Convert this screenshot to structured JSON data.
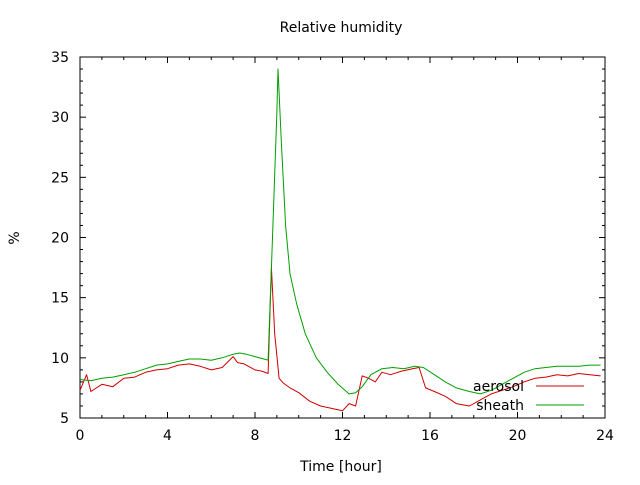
{
  "chart_data": {
    "type": "line",
    "title": "Relative humidity",
    "xlabel": "Time [hour]",
    "ylabel": "%",
    "xlim": [
      0,
      24
    ],
    "ylim": [
      5,
      35
    ],
    "x_ticks": [
      0,
      4,
      8,
      12,
      16,
      20,
      24
    ],
    "y_ticks": [
      5,
      10,
      15,
      20,
      25,
      30,
      35
    ],
    "grid": false,
    "legend_position": "bottom-right",
    "series": [
      {
        "name": "aerosol",
        "color": "#d00000",
        "x": [
          0,
          0.3,
          0.5,
          1,
          1.5,
          2,
          2.5,
          3,
          3.5,
          4,
          4.5,
          5,
          5.5,
          6,
          6.5,
          7,
          7.2,
          7.5,
          8,
          8.3,
          8.6,
          8.75,
          8.9,
          9.1,
          9.3,
          9.6,
          10,
          10.5,
          11,
          11.5,
          12,
          12.3,
          12.6,
          12.9,
          13.2,
          13.5,
          13.8,
          14.2,
          14.7,
          15.2,
          15.5,
          15.8,
          16.2,
          16.7,
          17.2,
          17.8,
          18.3,
          18.8,
          19.3,
          19.8,
          20.3,
          20.8,
          21.3,
          21.8,
          22.3,
          22.8,
          23.3,
          23.8
        ],
        "y": [
          7.3,
          8.6,
          7.2,
          7.8,
          7.6,
          8.3,
          8.4,
          8.8,
          9.0,
          9.1,
          9.4,
          9.5,
          9.3,
          9.0,
          9.2,
          10.1,
          9.6,
          9.5,
          9.0,
          8.9,
          8.7,
          17.5,
          12.0,
          8.3,
          7.9,
          7.5,
          7.1,
          6.4,
          6.0,
          5.8,
          5.6,
          6.2,
          6.0,
          8.5,
          8.3,
          8.0,
          8.8,
          8.6,
          8.9,
          9.1,
          9.2,
          7.5,
          7.2,
          6.8,
          6.2,
          6.0,
          6.5,
          7.0,
          7.3,
          7.6,
          8.0,
          8.3,
          8.4,
          8.6,
          8.5,
          8.7,
          8.6,
          8.5
        ]
      },
      {
        "name": "sheath",
        "color": "#00a000",
        "x": [
          0,
          0.5,
          1,
          1.5,
          2,
          2.5,
          3,
          3.5,
          4,
          4.5,
          5,
          5.5,
          6,
          6.5,
          7,
          7.3,
          7.6,
          8,
          8.4,
          8.6,
          8.8,
          9.0,
          9.05,
          9.2,
          9.4,
          9.6,
          9.9,
          10.3,
          10.8,
          11.3,
          11.8,
          12.3,
          12.6,
          12.9,
          13.3,
          13.8,
          14.3,
          14.8,
          15.3,
          15.7,
          16.2,
          16.7,
          17.2,
          17.8,
          18.3,
          18.8,
          19.3,
          19.8,
          20.3,
          20.8,
          21.3,
          21.8,
          22.3,
          22.8,
          23.3,
          23.8
        ],
        "y": [
          8.2,
          8.1,
          8.3,
          8.4,
          8.6,
          8.8,
          9.1,
          9.4,
          9.5,
          9.7,
          9.9,
          9.9,
          9.8,
          10.0,
          10.3,
          10.4,
          10.3,
          10.1,
          9.9,
          9.8,
          20.0,
          30.5,
          34.0,
          28.0,
          21.0,
          17.0,
          14.5,
          12.0,
          10.0,
          8.8,
          7.8,
          7.0,
          7.1,
          7.6,
          8.6,
          9.1,
          9.2,
          9.1,
          9.3,
          9.2,
          8.6,
          8.0,
          7.5,
          7.2,
          7.0,
          7.3,
          7.8,
          8.3,
          8.8,
          9.1,
          9.2,
          9.3,
          9.3,
          9.3,
          9.4,
          9.4
        ]
      }
    ]
  }
}
